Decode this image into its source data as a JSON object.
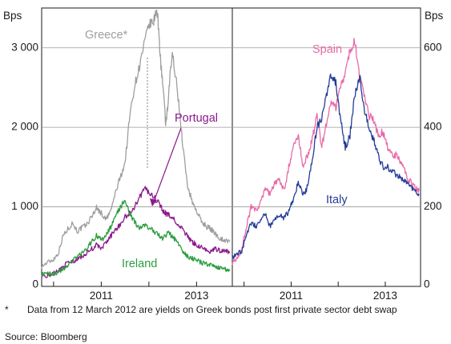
{
  "footnote": {
    "marker": "*",
    "text": "Data from 12 March 2012 are yields on Greek bonds post first private sector debt swap"
  },
  "source": "Source: Bloomberg",
  "colors": {
    "greece": "#9e9e9e",
    "portugal": "#8b1a8b",
    "ireland": "#2a9d3e",
    "spain": "#e86aa7",
    "italy": "#243c96"
  },
  "chart_data": [
    {
      "type": "line",
      "panel": "left",
      "ylabel": "Bps",
      "ylim": [
        0,
        3500
      ],
      "yticks": [
        0,
        1000,
        2000,
        3000
      ],
      "ytick_labels": [
        "0",
        "1 000",
        "2 000",
        "3 000"
      ],
      "xlim": [
        2009.75,
        2013.75
      ],
      "xticks": [
        2011,
        2013
      ],
      "xtick_labels": [
        "2011",
        "2013"
      ],
      "grid": true,
      "series": [
        {
          "name": "Greece*",
          "color": "#9e9e9e",
          "x": [
            2009.75,
            2009.9,
            2010.0,
            2010.1,
            2010.2,
            2010.3,
            2010.4,
            2010.5,
            2010.6,
            2010.7,
            2010.8,
            2010.9,
            2011.0,
            2011.1,
            2011.2,
            2011.3,
            2011.4,
            2011.5,
            2011.6,
            2011.7,
            2011.8,
            2011.9,
            2012.0,
            2012.1,
            2012.15,
            2012.19,
            2012.25,
            2012.3,
            2012.35,
            2012.4,
            2012.45,
            2012.5,
            2012.6,
            2012.7,
            2012.8,
            2012.9,
            2013.0,
            2013.1,
            2013.2,
            2013.3,
            2013.4,
            2013.5,
            2013.6,
            2013.7
          ],
          "y": [
            250,
            310,
            340,
            420,
            640,
            720,
            800,
            690,
            740,
            780,
            880,
            990,
            920,
            840,
            950,
            1180,
            1370,
            1560,
            2150,
            2520,
            2760,
            3040,
            3290,
            3320,
            3480,
            3350,
            2800,
            2480,
            2050,
            2250,
            2720,
            2920,
            2460,
            1840,
            1300,
            1080,
            950,
            820,
            760,
            720,
            660,
            600,
            580,
            560
          ]
        },
        {
          "name": "Portugal",
          "color": "#8b1a8b",
          "x": [
            2009.75,
            2009.9,
            2010.0,
            2010.1,
            2010.2,
            2010.3,
            2010.4,
            2010.5,
            2010.6,
            2010.7,
            2010.8,
            2010.9,
            2011.0,
            2011.1,
            2011.2,
            2011.3,
            2011.4,
            2011.5,
            2011.6,
            2011.7,
            2011.8,
            2011.9,
            2012.0,
            2012.1,
            2012.2,
            2012.3,
            2012.4,
            2012.5,
            2012.6,
            2012.7,
            2012.8,
            2012.9,
            2013.0,
            2013.1,
            2013.2,
            2013.3,
            2013.4,
            2013.5,
            2013.6,
            2013.7
          ],
          "y": [
            130,
            140,
            160,
            200,
            250,
            300,
            310,
            340,
            380,
            420,
            470,
            520,
            470,
            550,
            630,
            720,
            780,
            870,
            920,
            1010,
            1100,
            1250,
            1180,
            1120,
            1060,
            940,
            900,
            860,
            780,
            720,
            640,
            560,
            520,
            500,
            450,
            440,
            470,
            450,
            460,
            430
          ]
        },
        {
          "name": "Ireland",
          "color": "#2a9d3e",
          "x": [
            2009.75,
            2009.9,
            2010.0,
            2010.1,
            2010.2,
            2010.3,
            2010.4,
            2010.5,
            2010.6,
            2010.7,
            2010.8,
            2010.9,
            2011.0,
            2011.1,
            2011.2,
            2011.3,
            2011.4,
            2011.5,
            2011.6,
            2011.7,
            2011.8,
            2011.9,
            2012.0,
            2012.1,
            2012.2,
            2012.3,
            2012.4,
            2012.5,
            2012.6,
            2012.7,
            2012.8,
            2012.9,
            2013.0,
            2013.1,
            2013.2,
            2013.3,
            2013.4,
            2013.5,
            2013.6,
            2013.7
          ],
          "y": [
            150,
            160,
            150,
            170,
            220,
            270,
            320,
            380,
            420,
            480,
            560,
            640,
            580,
            640,
            740,
            880,
            1000,
            1080,
            900,
            820,
            720,
            770,
            740,
            700,
            640,
            600,
            680,
            620,
            560,
            450,
            380,
            350,
            330,
            300,
            280,
            270,
            250,
            230,
            215,
            200
          ]
        }
      ],
      "annotations": [
        {
          "text": "Greece*",
          "color": "#9e9e9e"
        },
        {
          "text": "Portugal",
          "color": "#8b1a8b"
        },
        {
          "text": "Ireland",
          "color": "#2a9d3e"
        }
      ]
    },
    {
      "type": "line",
      "panel": "right",
      "ylabel": "Bps",
      "ylim": [
        0,
        700
      ],
      "yticks": [
        0,
        200,
        400,
        600
      ],
      "ytick_labels": [
        "0",
        "200",
        "400",
        "600"
      ],
      "xlim": [
        2009.75,
        2013.75
      ],
      "xticks": [
        2011,
        2013
      ],
      "xtick_labels": [
        "2011",
        "2013"
      ],
      "grid": true,
      "series": [
        {
          "name": "Spain",
          "color": "#e86aa7",
          "x": [
            2009.75,
            2009.85,
            2009.95,
            2010.05,
            2010.15,
            2010.25,
            2010.35,
            2010.45,
            2010.55,
            2010.65,
            2010.75,
            2010.85,
            2010.95,
            2011.05,
            2011.15,
            2011.25,
            2011.35,
            2011.45,
            2011.55,
            2011.65,
            2011.75,
            2011.85,
            2011.95,
            2012.05,
            2012.15,
            2012.25,
            2012.35,
            2012.45,
            2012.55,
            2012.65,
            2012.75,
            2012.85,
            2012.95,
            2013.05,
            2013.15,
            2013.25,
            2013.35,
            2013.45,
            2013.55,
            2013.65,
            2013.72
          ],
          "y": [
            60,
            70,
            90,
            150,
            200,
            190,
            210,
            250,
            230,
            260,
            270,
            240,
            300,
            350,
            380,
            300,
            330,
            370,
            430,
            350,
            410,
            460,
            450,
            500,
            540,
            590,
            620,
            530,
            480,
            430,
            420,
            380,
            390,
            350,
            330,
            330,
            310,
            280,
            260,
            245,
            240
          ]
        },
        {
          "name": "Italy",
          "color": "#243c96",
          "x": [
            2009.75,
            2009.85,
            2009.95,
            2010.05,
            2010.15,
            2010.25,
            2010.35,
            2010.45,
            2010.55,
            2010.65,
            2010.75,
            2010.85,
            2010.95,
            2011.05,
            2011.15,
            2011.25,
            2011.35,
            2011.45,
            2011.55,
            2011.65,
            2011.75,
            2011.85,
            2011.95,
            2012.05,
            2012.15,
            2012.25,
            2012.35,
            2012.45,
            2012.55,
            2012.65,
            2012.75,
            2012.85,
            2012.95,
            2013.05,
            2013.15,
            2013.25,
            2013.35,
            2013.45,
            2013.55,
            2013.65,
            2013.72
          ],
          "y": [
            75,
            80,
            90,
            130,
            160,
            150,
            170,
            180,
            150,
            170,
            180,
            170,
            190,
            220,
            260,
            230,
            250,
            320,
            400,
            420,
            480,
            530,
            510,
            420,
            350,
            380,
            480,
            530,
            450,
            400,
            370,
            330,
            300,
            300,
            290,
            280,
            270,
            260,
            250,
            240,
            230
          ]
        }
      ],
      "annotations": [
        {
          "text": "Spain",
          "color": "#e86aa7"
        },
        {
          "text": "Italy",
          "color": "#243c96"
        }
      ]
    }
  ]
}
